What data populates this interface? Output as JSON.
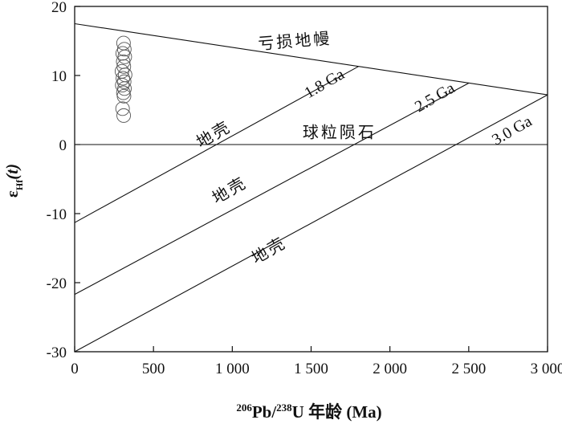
{
  "chart_data": {
    "type": "line",
    "xlabel": {
      "sup1": "206",
      "pre": "Pb/",
      "sup2": "238",
      "post": "U 年龄 (Ma)"
    },
    "ylabel": {
      "main": "ε",
      "sub": "Hf",
      "post": "(t)"
    },
    "xlim": [
      0,
      3000
    ],
    "ylim": [
      -30,
      20
    ],
    "x_ticks": [
      0,
      500,
      1000,
      1500,
      2000,
      2500,
      3000
    ],
    "x_tick_labels": [
      "0",
      "500",
      "1 000",
      "1 500",
      "2 000",
      "2 500",
      "3 000"
    ],
    "y_ticks": [
      -30,
      -20,
      -10,
      0,
      10,
      20
    ],
    "y_tick_labels": [
      "-30",
      "-20",
      "-10",
      "0",
      "10",
      "20"
    ],
    "series": [
      {
        "x": [
          0,
          3000
        ],
        "y": [
          17.5,
          7.2
        ]
      },
      {
        "x": [
          0,
          3000
        ],
        "y": [
          0,
          0
        ]
      },
      {
        "x": [
          0,
          1800
        ],
        "y": [
          -11.3,
          11.3
        ]
      },
      {
        "x": [
          0,
          2500
        ],
        "y": [
          -21.7,
          8.9
        ]
      },
      {
        "x": [
          0,
          3000
        ],
        "y": [
          -30,
          7.2
        ]
      }
    ],
    "scatter_points": [
      {
        "x": 310,
        "y": 14.7
      },
      {
        "x": 315,
        "y": 13.8
      },
      {
        "x": 305,
        "y": 13.2
      },
      {
        "x": 318,
        "y": 12.7
      },
      {
        "x": 308,
        "y": 12.0
      },
      {
        "x": 312,
        "y": 11.3
      },
      {
        "x": 300,
        "y": 10.6
      },
      {
        "x": 320,
        "y": 10.1
      },
      {
        "x": 306,
        "y": 9.6
      },
      {
        "x": 314,
        "y": 9.1
      },
      {
        "x": 302,
        "y": 8.6
      },
      {
        "x": 316,
        "y": 8.1
      },
      {
        "x": 309,
        "y": 7.5
      },
      {
        "x": 313,
        "y": 7.0
      },
      {
        "x": 304,
        "y": 5.2
      },
      {
        "x": 311,
        "y": 4.2
      }
    ],
    "annotations": [
      {
        "text": "亏损地幔",
        "x": 1400,
        "y": 14.2,
        "angle": -4.5,
        "font": "cjk"
      },
      {
        "text": "1.8 Ga",
        "x": 1600,
        "y": 8.2,
        "angle": -30,
        "font": "ga"
      },
      {
        "text": "2.5 Ga",
        "x": 2300,
        "y": 6.2,
        "angle": -30,
        "font": "ga"
      },
      {
        "text": "3.0 Ga",
        "x": 2790,
        "y": 1.4,
        "angle": -30,
        "font": "ga"
      },
      {
        "text": "地壳",
        "x": 900,
        "y": 0.8,
        "angle": -30,
        "font": "cjk"
      },
      {
        "text": "地壳",
        "x": 1000,
        "y": -7.3,
        "angle": -30,
        "font": "cjk"
      },
      {
        "text": "地壳",
        "x": 1250,
        "y": -16.0,
        "angle": -30,
        "font": "cjk"
      },
      {
        "text": "球粒陨石",
        "x": 1680,
        "y": 1.0,
        "angle": 0,
        "font": "cjk"
      }
    ]
  }
}
